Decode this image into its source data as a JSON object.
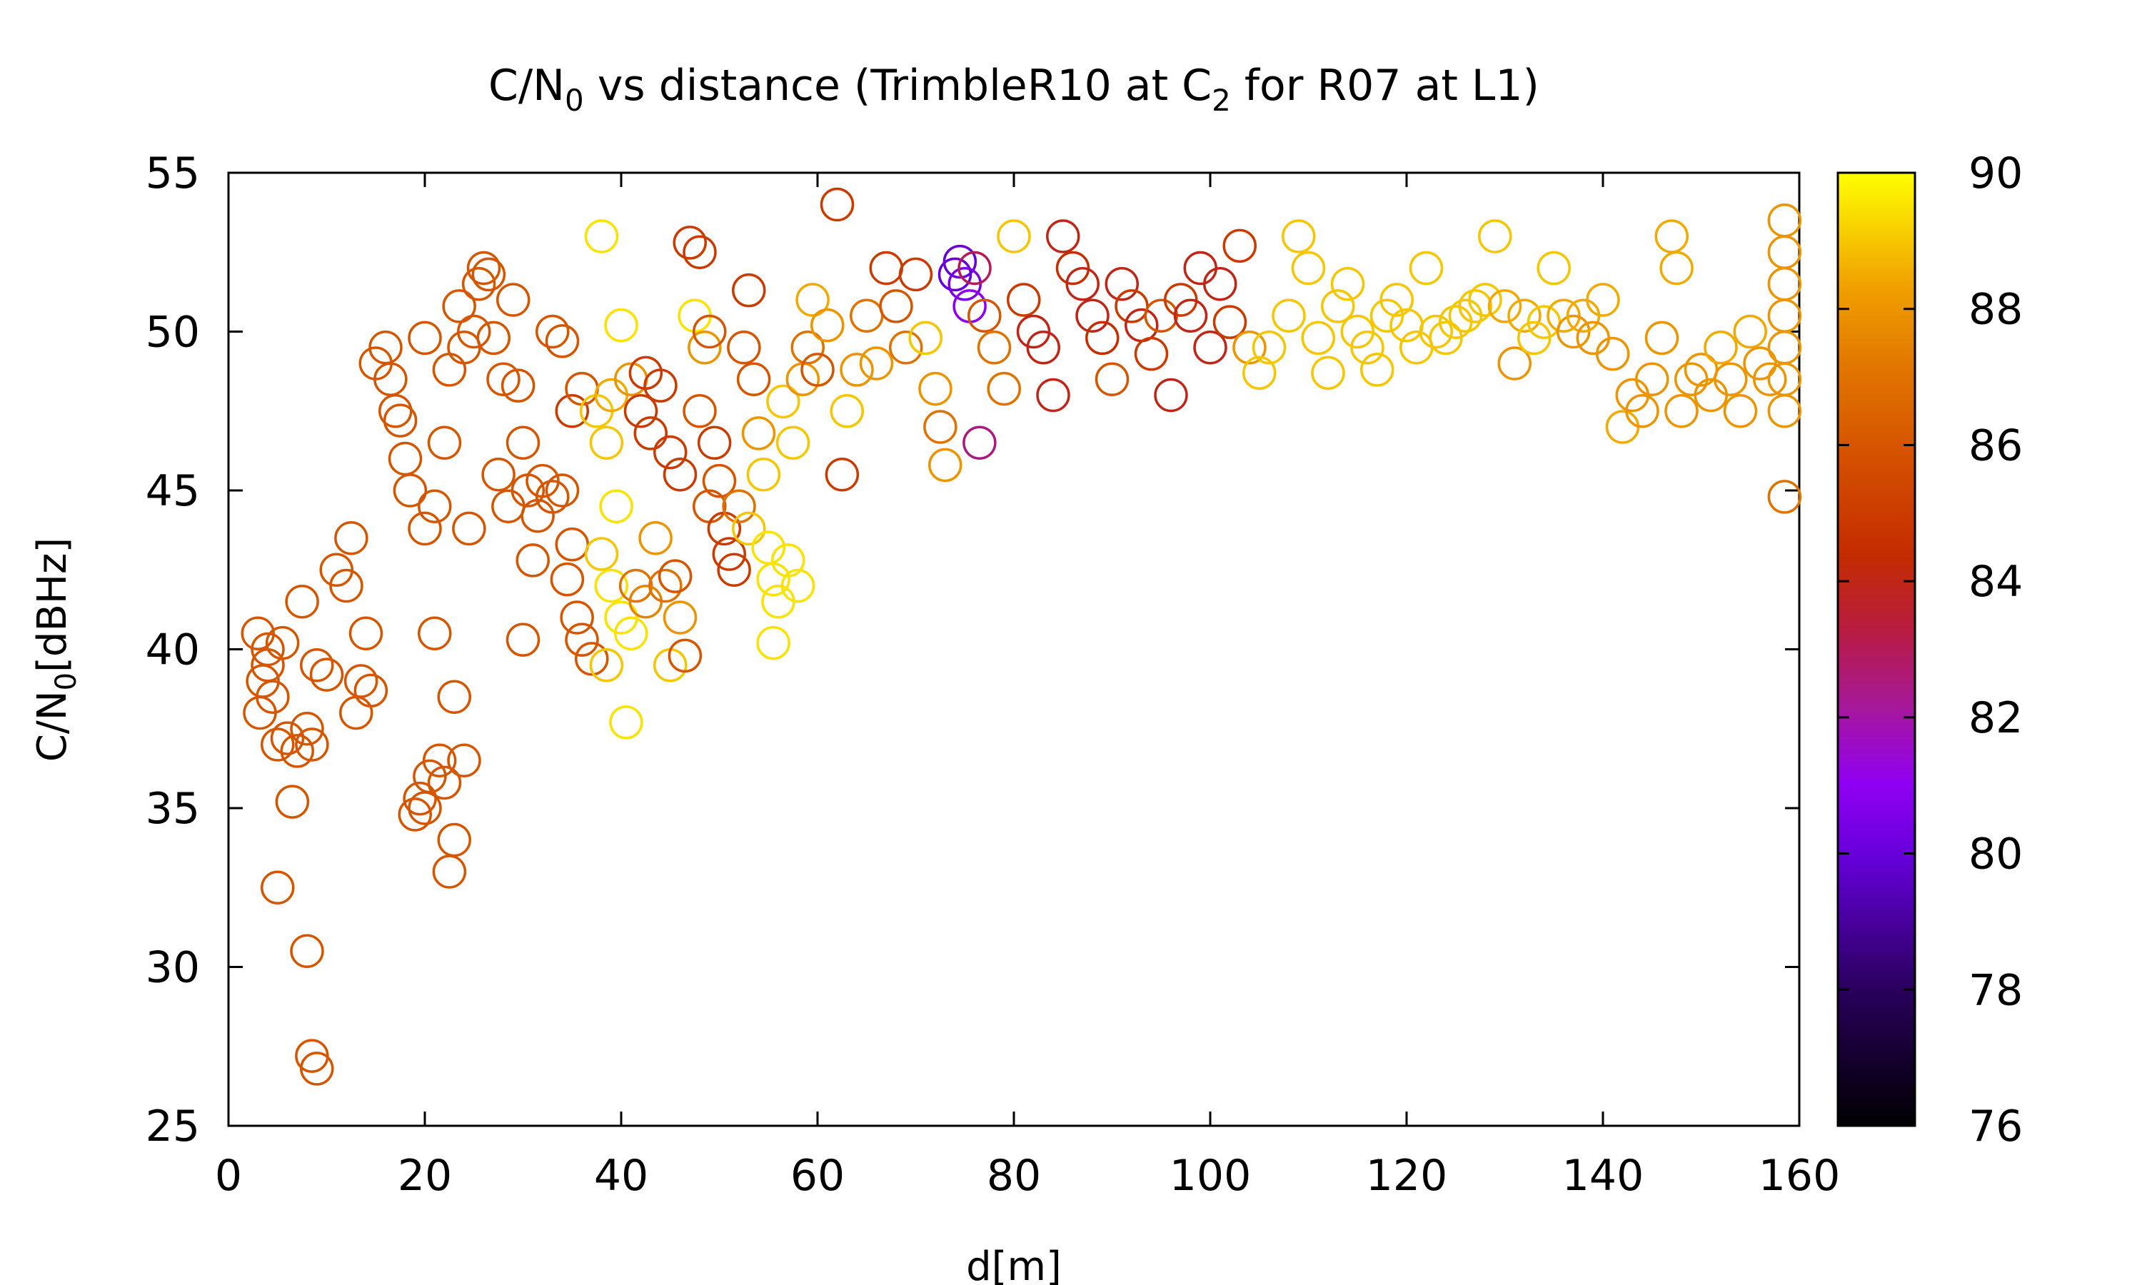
{
  "chart_data": {
    "type": "scatter",
    "title": {
      "pre": "C/N",
      "sub": "0",
      "mid": " vs distance (TrimbleR10 at C",
      "sub2": "2",
      "post": " for R07 at L1)"
    },
    "xlabel": "d[m]",
    "ylabel": {
      "pre": "C/N",
      "sub": "0",
      "post": "[dBHz]"
    },
    "xlim": [
      0,
      160
    ],
    "ylim": [
      25,
      55
    ],
    "xticks": [
      "0",
      "20",
      "40",
      "60",
      "80",
      "100",
      "120",
      "140",
      "160"
    ],
    "yticks": [
      "25",
      "30",
      "35",
      "40",
      "45",
      "50",
      "55"
    ],
    "colorbar": {
      "min": 76,
      "max": 90,
      "ticks": [
        "76",
        "78",
        "80",
        "82",
        "84",
        "86",
        "88",
        "90"
      ],
      "palette": "gnuplot-rgbformulae-7-5-15 (black-purple-red-orange-yellow)"
    },
    "marker": "open-circle",
    "grid": false,
    "legend": "none",
    "points": [
      [
        3,
        40.5,
        86
      ],
      [
        3.5,
        39,
        86
      ],
      [
        4,
        40,
        86
      ],
      [
        4.5,
        38.5,
        86
      ],
      [
        5,
        37,
        86
      ],
      [
        5.5,
        40.2,
        86
      ],
      [
        4,
        39.5,
        86
      ],
      [
        3.2,
        38,
        86
      ],
      [
        6,
        37.2,
        86
      ],
      [
        7,
        36.8,
        86
      ],
      [
        6.5,
        35.2,
        86
      ],
      [
        7.5,
        41.5,
        86
      ],
      [
        8,
        37.5,
        86
      ],
      [
        8.5,
        37,
        86
      ],
      [
        9,
        39.5,
        86
      ],
      [
        10,
        39.2,
        86
      ],
      [
        5,
        32.5,
        86
      ],
      [
        8,
        30.5,
        86
      ],
      [
        8.5,
        27.2,
        86
      ],
      [
        9,
        26.8,
        86
      ],
      [
        11,
        42.5,
        86
      ],
      [
        12,
        42,
        86
      ],
      [
        12.5,
        43.5,
        86
      ],
      [
        13,
        38,
        86
      ],
      [
        13.5,
        39,
        86
      ],
      [
        14,
        40.5,
        86
      ],
      [
        14.5,
        38.7,
        86
      ],
      [
        15,
        49,
        86
      ],
      [
        16,
        49.5,
        86
      ],
      [
        16.5,
        48.5,
        86
      ],
      [
        17,
        47.5,
        86
      ],
      [
        17.5,
        47.2,
        86
      ],
      [
        18,
        46,
        86
      ],
      [
        18.5,
        45,
        86
      ],
      [
        19,
        34.8,
        86
      ],
      [
        19.5,
        35.3,
        86
      ],
      [
        20,
        35,
        86
      ],
      [
        20.5,
        36,
        86
      ],
      [
        21,
        40.5,
        86
      ],
      [
        21.5,
        36.5,
        86
      ],
      [
        22,
        35.8,
        86
      ],
      [
        22.5,
        33,
        86
      ],
      [
        23,
        34,
        86
      ],
      [
        24,
        36.5,
        86
      ],
      [
        20,
        49.8,
        86
      ],
      [
        21,
        44.5,
        86
      ],
      [
        22,
        46.5,
        86
      ],
      [
        22.5,
        48.8,
        86
      ],
      [
        23.5,
        50.8,
        86
      ],
      [
        24,
        49.5,
        86
      ],
      [
        25,
        50,
        86
      ],
      [
        25.5,
        51.5,
        86
      ],
      [
        26,
        52,
        86
      ],
      [
        26.5,
        51.8,
        86
      ],
      [
        27,
        49.8,
        86
      ],
      [
        27.5,
        45.5,
        86
      ],
      [
        28,
        48.5,
        86
      ],
      [
        28.5,
        44.5,
        86
      ],
      [
        29,
        51,
        86
      ],
      [
        29.5,
        48.3,
        86
      ],
      [
        30,
        46.5,
        86
      ],
      [
        30.5,
        45,
        86
      ],
      [
        31,
        42.8,
        86
      ],
      [
        31.5,
        44.2,
        86
      ],
      [
        32,
        45.3,
        86
      ],
      [
        33,
        44.8,
        86
      ],
      [
        34,
        45,
        86
      ],
      [
        30,
        40.3,
        86
      ],
      [
        23,
        38.5,
        86
      ],
      [
        20,
        43.8,
        86
      ],
      [
        24.5,
        43.8,
        86
      ],
      [
        33,
        50,
        86
      ],
      [
        34,
        49.7,
        86
      ],
      [
        35,
        47.5,
        85
      ],
      [
        36,
        48.2,
        86
      ],
      [
        34.5,
        42.2,
        86
      ],
      [
        35.5,
        41,
        86
      ],
      [
        36,
        40.3,
        86
      ],
      [
        37,
        39.7,
        86
      ],
      [
        35,
        43.3,
        86
      ],
      [
        38,
        53,
        89.5
      ],
      [
        37.5,
        47.5,
        89
      ],
      [
        38.5,
        46.5,
        89
      ],
      [
        39,
        48,
        88.5
      ],
      [
        39.5,
        44.5,
        89.5
      ],
      [
        38,
        43,
        89
      ],
      [
        39,
        42,
        89.5
      ],
      [
        40,
        41,
        89.5
      ],
      [
        40.5,
        37.7,
        89.5
      ],
      [
        38.5,
        39.5,
        89
      ],
      [
        41,
        40.5,
        89.5
      ],
      [
        40,
        50.2,
        89.5
      ],
      [
        41,
        48.5,
        88
      ],
      [
        42,
        47.5,
        85
      ],
      [
        43,
        46.8,
        85
      ],
      [
        42.5,
        48.7,
        85
      ],
      [
        44,
        48.3,
        85
      ],
      [
        45,
        46.2,
        85
      ],
      [
        46,
        45.5,
        85
      ],
      [
        41.5,
        42,
        87
      ],
      [
        42.5,
        41.5,
        87.5
      ],
      [
        43.5,
        43.5,
        88
      ],
      [
        44.5,
        42,
        87
      ],
      [
        45.5,
        42.3,
        86
      ],
      [
        46,
        41,
        88
      ],
      [
        45,
        39.5,
        89
      ],
      [
        46.5,
        39.8,
        86
      ],
      [
        47,
        52.8,
        85
      ],
      [
        48,
        52.5,
        85
      ],
      [
        47.5,
        50.5,
        89.5
      ],
      [
        48.5,
        49.5,
        88
      ],
      [
        49,
        50,
        86
      ],
      [
        48,
        47.5,
        86
      ],
      [
        49.5,
        46.5,
        85
      ],
      [
        50,
        45.3,
        86
      ],
      [
        49,
        44.5,
        86
      ],
      [
        50.5,
        43.8,
        85
      ],
      [
        51,
        43,
        85
      ],
      [
        51.5,
        42.5,
        85
      ],
      [
        52,
        44.5,
        87
      ],
      [
        53,
        51.3,
        85
      ],
      [
        52.5,
        49.5,
        86
      ],
      [
        53.5,
        48.5,
        86
      ],
      [
        54,
        46.8,
        88
      ],
      [
        54.5,
        45.5,
        89
      ],
      [
        53,
        43.8,
        89
      ],
      [
        55,
        43.2,
        89.5
      ],
      [
        55.5,
        42.2,
        89.5
      ],
      [
        56,
        41.5,
        89.5
      ],
      [
        55.5,
        40.2,
        89.5
      ],
      [
        57,
        42.8,
        89.5
      ],
      [
        58,
        42,
        89.5
      ],
      [
        56.5,
        47.8,
        89
      ],
      [
        57.5,
        46.5,
        89
      ],
      [
        58.5,
        48.5,
        88
      ],
      [
        59,
        49.5,
        87
      ],
      [
        60,
        48.8,
        86
      ],
      [
        59.5,
        51,
        88.5
      ],
      [
        61,
        50.2,
        88
      ],
      [
        62,
        54,
        85
      ],
      [
        62.5,
        45.5,
        85
      ],
      [
        63,
        47.5,
        89
      ],
      [
        64,
        48.8,
        88
      ],
      [
        65,
        50.5,
        87
      ],
      [
        66,
        49,
        88
      ],
      [
        67,
        52,
        85
      ],
      [
        68,
        50.8,
        86
      ],
      [
        69,
        49.5,
        87
      ],
      [
        70,
        51.8,
        85
      ],
      [
        71,
        49.8,
        89
      ],
      [
        72,
        48.2,
        88
      ],
      [
        72.5,
        47,
        87
      ],
      [
        73,
        45.8,
        88
      ],
      [
        74,
        51.8,
        80
      ],
      [
        74.5,
        52.2,
        80
      ],
      [
        75,
        51.5,
        80.5
      ],
      [
        75.5,
        50.8,
        81
      ],
      [
        76,
        52,
        83
      ],
      [
        76.5,
        46.5,
        82.5
      ],
      [
        77,
        50.5,
        86
      ],
      [
        78,
        49.5,
        87
      ],
      [
        79,
        48.2,
        87
      ],
      [
        80,
        53,
        89
      ],
      [
        81,
        51,
        85
      ],
      [
        82,
        50,
        84
      ],
      [
        83,
        49.5,
        84
      ],
      [
        84,
        48,
        84
      ],
      [
        85,
        53,
        84
      ],
      [
        86,
        52,
        84.5
      ],
      [
        87,
        51.5,
        84
      ],
      [
        88,
        50.5,
        84
      ],
      [
        89,
        49.8,
        84.5
      ],
      [
        90,
        48.5,
        86
      ],
      [
        91,
        51.5,
        84
      ],
      [
        92,
        50.8,
        85
      ],
      [
        93,
        50.2,
        84
      ],
      [
        94,
        49.3,
        85
      ],
      [
        95,
        50.5,
        86
      ],
      [
        96,
        48,
        84
      ],
      [
        97,
        51,
        85
      ],
      [
        98,
        50.5,
        84
      ],
      [
        99,
        52,
        84
      ],
      [
        100,
        49.5,
        84
      ],
      [
        101,
        51.5,
        84
      ],
      [
        102,
        50.3,
        85
      ],
      [
        103,
        52.7,
        85
      ],
      [
        104,
        49.5,
        88
      ],
      [
        105,
        48.7,
        89
      ],
      [
        106,
        49.5,
        89
      ],
      [
        108,
        50.5,
        89
      ],
      [
        109,
        53,
        89
      ],
      [
        110,
        52,
        89
      ],
      [
        111,
        49.8,
        89
      ],
      [
        112,
        48.7,
        89
      ],
      [
        113,
        50.8,
        89
      ],
      [
        114,
        51.5,
        89
      ],
      [
        115,
        50,
        89
      ],
      [
        116,
        49.5,
        89
      ],
      [
        117,
        48.8,
        89
      ],
      [
        118,
        50.5,
        89
      ],
      [
        119,
        51,
        89
      ],
      [
        120,
        50.2,
        89
      ],
      [
        121,
        49.5,
        89
      ],
      [
        122,
        52,
        89
      ],
      [
        123,
        50,
        89
      ],
      [
        124,
        49.8,
        89
      ],
      [
        125,
        50.3,
        89
      ],
      [
        126,
        50.5,
        89
      ],
      [
        127,
        50.8,
        89
      ],
      [
        128,
        51,
        89
      ],
      [
        129,
        53,
        89
      ],
      [
        130,
        50.8,
        88.5
      ],
      [
        131,
        49,
        88
      ],
      [
        132,
        50.5,
        88.5
      ],
      [
        133,
        49.8,
        89
      ],
      [
        134,
        50.3,
        89
      ],
      [
        135,
        52,
        89
      ],
      [
        136,
        50.5,
        88.5
      ],
      [
        137,
        50,
        88
      ],
      [
        138,
        50.5,
        88.5
      ],
      [
        139,
        49.8,
        88
      ],
      [
        140,
        51,
        88.5
      ],
      [
        141,
        49.3,
        88
      ],
      [
        142,
        47,
        88.5
      ],
      [
        143,
        48,
        88
      ],
      [
        144,
        47.5,
        88
      ],
      [
        145,
        48.5,
        88
      ],
      [
        146,
        49.8,
        88
      ],
      [
        147,
        53,
        88.5
      ],
      [
        147.5,
        52,
        88.5
      ],
      [
        148,
        47.5,
        88
      ],
      [
        149,
        48.5,
        88
      ],
      [
        150,
        48.8,
        88
      ],
      [
        151,
        48,
        88
      ],
      [
        152,
        49.5,
        88.5
      ],
      [
        153,
        48.5,
        88
      ],
      [
        154,
        47.5,
        88
      ],
      [
        155,
        50,
        88.5
      ],
      [
        156,
        49,
        88
      ],
      [
        157,
        48.5,
        88
      ],
      [
        158.5,
        53.5,
        88
      ],
      [
        158.5,
        52.5,
        88
      ],
      [
        158.5,
        51.5,
        88
      ],
      [
        158.5,
        50.5,
        88
      ],
      [
        158.5,
        49.5,
        88
      ],
      [
        158.5,
        48.5,
        88
      ],
      [
        158.5,
        47.5,
        88
      ],
      [
        158.5,
        44.8,
        87
      ]
    ]
  }
}
